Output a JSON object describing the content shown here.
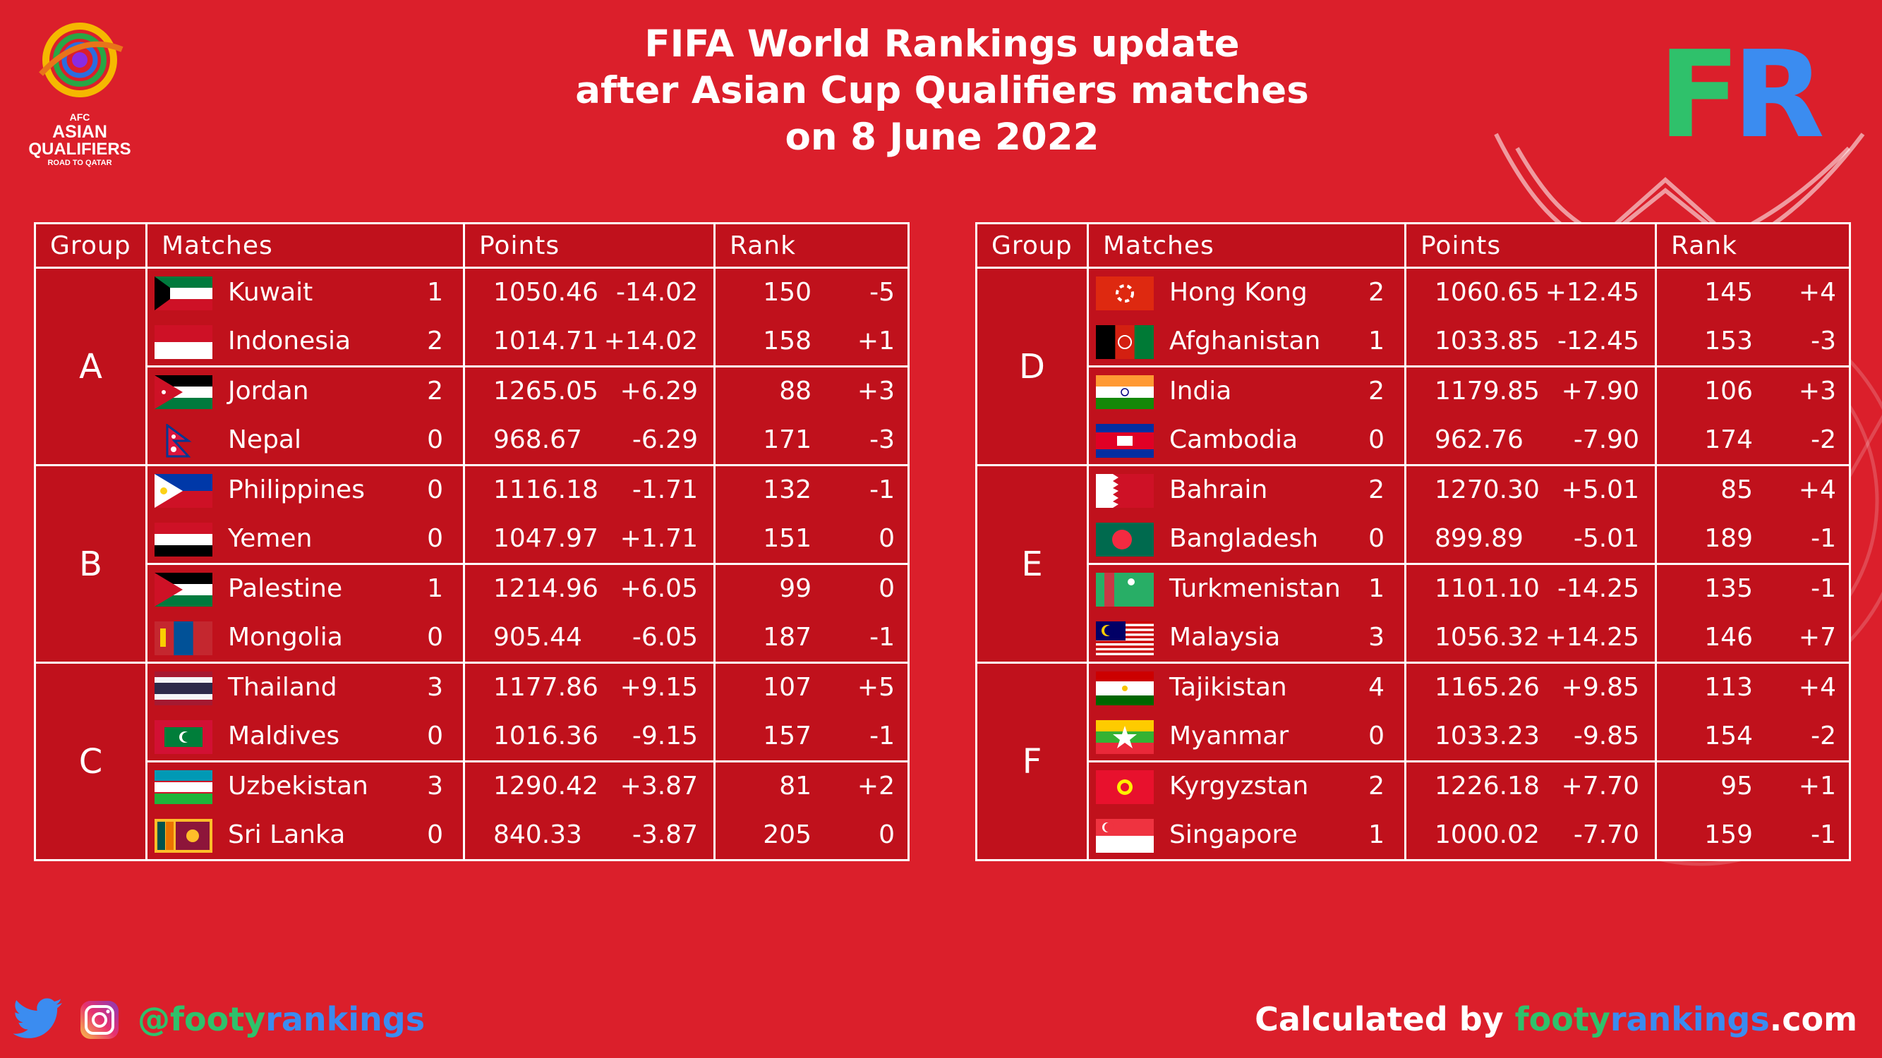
{
  "header": {
    "title_lines": [
      "FIFA World Rankings update",
      "after Asian Cup Qualifiers matches",
      "on 8 June 2022"
    ],
    "logo_lines": [
      "AFC",
      "ASIAN",
      "QUALIFIERS",
      "ROAD TO QATAR"
    ],
    "brand_mark": "FR"
  },
  "columns": [
    "Group",
    "Matches",
    "Points",
    "Rank"
  ],
  "colors": {
    "background": "#db1f2b",
    "table_bg": "#c0111c",
    "brand_green": "#2fc16b",
    "brand_blue": "#3b8cf0"
  },
  "groups_left": [
    {
      "label": "A",
      "teams": [
        {
          "flag": "kuwait",
          "name": "Kuwait",
          "goals": "1",
          "points": "1050.46",
          "points_change": "-14.02",
          "rank": "150",
          "rank_change": "-5"
        },
        {
          "flag": "indonesia",
          "name": "Indonesia",
          "goals": "2",
          "points": "1014.71",
          "points_change": "+14.02",
          "rank": "158",
          "rank_change": "+1"
        },
        {
          "flag": "jordan",
          "name": "Jordan",
          "goals": "2",
          "points": "1265.05",
          "points_change": "+6.29",
          "rank": "88",
          "rank_change": "+3"
        },
        {
          "flag": "nepal",
          "name": "Nepal",
          "goals": "0",
          "points": "968.67",
          "points_change": "-6.29",
          "rank": "171",
          "rank_change": "-3"
        }
      ]
    },
    {
      "label": "B",
      "teams": [
        {
          "flag": "philippines",
          "name": "Philippines",
          "goals": "0",
          "points": "1116.18",
          "points_change": "-1.71",
          "rank": "132",
          "rank_change": "-1"
        },
        {
          "flag": "yemen",
          "name": "Yemen",
          "goals": "0",
          "points": "1047.97",
          "points_change": "+1.71",
          "rank": "151",
          "rank_change": "0"
        },
        {
          "flag": "palestine",
          "name": "Palestine",
          "goals": "1",
          "points": "1214.96",
          "points_change": "+6.05",
          "rank": "99",
          "rank_change": "0"
        },
        {
          "flag": "mongolia",
          "name": "Mongolia",
          "goals": "0",
          "points": "905.44",
          "points_change": "-6.05",
          "rank": "187",
          "rank_change": "-1"
        }
      ]
    },
    {
      "label": "C",
      "teams": [
        {
          "flag": "thailand",
          "name": "Thailand",
          "goals": "3",
          "points": "1177.86",
          "points_change": "+9.15",
          "rank": "107",
          "rank_change": "+5"
        },
        {
          "flag": "maldives",
          "name": "Maldives",
          "goals": "0",
          "points": "1016.36",
          "points_change": "-9.15",
          "rank": "157",
          "rank_change": "-1"
        },
        {
          "flag": "uzbekistan",
          "name": "Uzbekistan",
          "goals": "3",
          "points": "1290.42",
          "points_change": "+3.87",
          "rank": "81",
          "rank_change": "+2"
        },
        {
          "flag": "srilanka",
          "name": "Sri Lanka",
          "goals": "0",
          "points": "840.33",
          "points_change": "-3.87",
          "rank": "205",
          "rank_change": "0"
        }
      ]
    }
  ],
  "groups_right": [
    {
      "label": "D",
      "teams": [
        {
          "flag": "hongkong",
          "name": "Hong Kong",
          "goals": "2",
          "points": "1060.65",
          "points_change": "+12.45",
          "rank": "145",
          "rank_change": "+4"
        },
        {
          "flag": "afghanistan",
          "name": "Afghanistan",
          "goals": "1",
          "points": "1033.85",
          "points_change": "-12.45",
          "rank": "153",
          "rank_change": "-3"
        },
        {
          "flag": "india",
          "name": "India",
          "goals": "2",
          "points": "1179.85",
          "points_change": "+7.90",
          "rank": "106",
          "rank_change": "+3"
        },
        {
          "flag": "cambodia",
          "name": "Cambodia",
          "goals": "0",
          "points": "962.76",
          "points_change": "-7.90",
          "rank": "174",
          "rank_change": "-2"
        }
      ]
    },
    {
      "label": "E",
      "teams": [
        {
          "flag": "bahrain",
          "name": "Bahrain",
          "goals": "2",
          "points": "1270.30",
          "points_change": "+5.01",
          "rank": "85",
          "rank_change": "+4"
        },
        {
          "flag": "bangladesh",
          "name": "Bangladesh",
          "goals": "0",
          "points": "899.89",
          "points_change": "-5.01",
          "rank": "189",
          "rank_change": "-1"
        },
        {
          "flag": "turkmenistan",
          "name": "Turkmenistan",
          "goals": "1",
          "points": "1101.10",
          "points_change": "-14.25",
          "rank": "135",
          "rank_change": "-1"
        },
        {
          "flag": "malaysia",
          "name": "Malaysia",
          "goals": "3",
          "points": "1056.32",
          "points_change": "+14.25",
          "rank": "146",
          "rank_change": "+7"
        }
      ]
    },
    {
      "label": "F",
      "teams": [
        {
          "flag": "tajikistan",
          "name": "Tajikistan",
          "goals": "4",
          "points": "1165.26",
          "points_change": "+9.85",
          "rank": "113",
          "rank_change": "+4"
        },
        {
          "flag": "myanmar",
          "name": "Myanmar",
          "goals": "0",
          "points": "1033.23",
          "points_change": "-9.85",
          "rank": "154",
          "rank_change": "-2"
        },
        {
          "flag": "kyrgyzstan",
          "name": "Kyrgyzstan",
          "goals": "2",
          "points": "1226.18",
          "points_change": "+7.70",
          "rank": "95",
          "rank_change": "+1"
        },
        {
          "flag": "singapore",
          "name": "Singapore",
          "goals": "1",
          "points": "1000.02",
          "points_change": "-7.70",
          "rank": "159",
          "rank_change": "-1"
        }
      ]
    }
  ],
  "footer": {
    "handle_prefix": "@footy",
    "handle_suffix": "rankings",
    "calc_prefix": "Calculated by ",
    "calc_site_a": "footy",
    "calc_site_b": "rankings",
    "calc_site_c": ".com"
  }
}
